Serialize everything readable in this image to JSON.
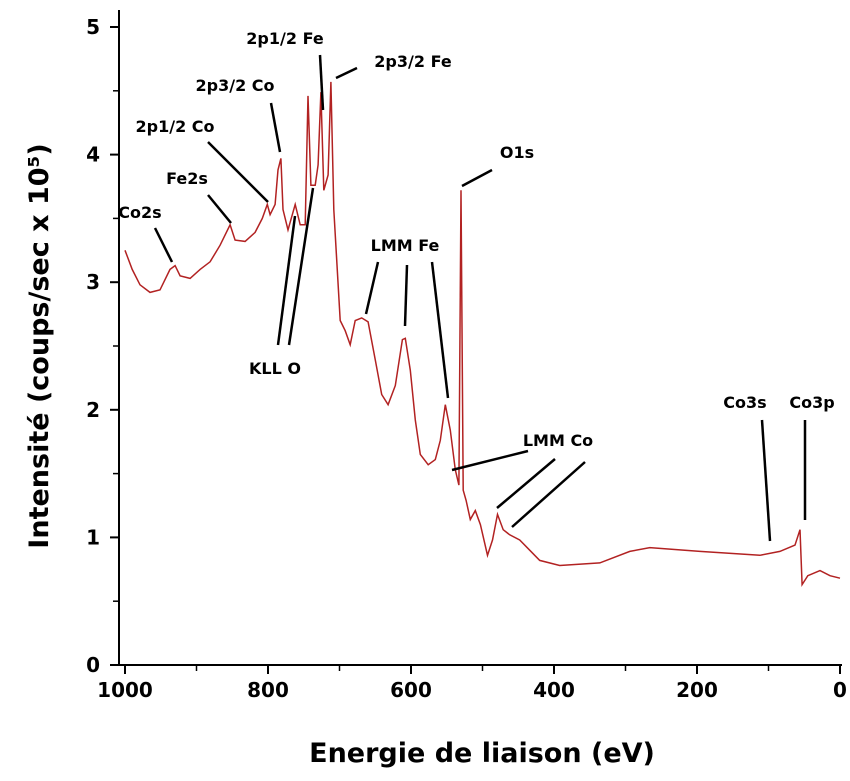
{
  "chart_data": {
    "type": "line",
    "x_label": "Energie de liaison (eV)",
    "y_label": "Intensité (coups/sec x 10⁵)",
    "xlim": [
      1000,
      0
    ],
    "xticks": [
      1000,
      800,
      600,
      400,
      200,
      0
    ],
    "ylim": [
      0,
      5
    ],
    "yticks": [
      0,
      1,
      2,
      3,
      4,
      5
    ],
    "series": [
      {
        "color": "#b22222",
        "x": [
          1000,
          990,
          979,
          965,
          951,
          937,
          930,
          923,
          909,
          895,
          881,
          867,
          853,
          846,
          832,
          818,
          808,
          801,
          797,
          790,
          786,
          782,
          779,
          772,
          762,
          755,
          748,
          744,
          740,
          734,
          730,
          726,
          722,
          716,
          712,
          708,
          699,
          692,
          685,
          678,
          669,
          660,
          650,
          641,
          632,
          622,
          612,
          608,
          601,
          594,
          587,
          576,
          566,
          559,
          552,
          545,
          538,
          533,
          530,
          527,
          523,
          517,
          510,
          503,
          493,
          486,
          479,
          471,
          462,
          448,
          434,
          420,
          392,
          336,
          294,
          266,
          196,
          112,
          84,
          63,
          56,
          53,
          45,
          28,
          14,
          0
        ],
        "values": [
          3.25,
          3.1,
          2.98,
          2.92,
          2.94,
          3.1,
          3.13,
          3.05,
          3.03,
          3.1,
          3.16,
          3.29,
          3.45,
          3.33,
          3.32,
          3.39,
          3.5,
          3.61,
          3.53,
          3.61,
          3.88,
          3.97,
          3.57,
          3.41,
          3.61,
          3.45,
          3.45,
          4.46,
          3.76,
          3.76,
          3.92,
          4.49,
          3.72,
          3.84,
          4.57,
          3.57,
          2.7,
          2.62,
          2.51,
          2.7,
          2.72,
          2.69,
          2.39,
          2.12,
          2.04,
          2.19,
          2.55,
          2.56,
          2.31,
          1.92,
          1.65,
          1.57,
          1.61,
          1.76,
          2.04,
          1.84,
          1.53,
          1.41,
          3.72,
          1.37,
          1.29,
          1.14,
          1.21,
          1.1,
          0.86,
          0.98,
          1.18,
          1.06,
          1.02,
          0.98,
          0.9,
          0.82,
          0.78,
          0.8,
          0.89,
          0.92,
          0.89,
          0.86,
          0.89,
          0.94,
          1.06,
          0.63,
          0.7,
          0.74,
          0.7,
          0.68
        ]
      }
    ],
    "annotations": [
      "2p1/2 Fe",
      "2p3/2 Fe",
      "2p3/2 Co",
      "2p1/2 Co",
      "Fe2s",
      "Co2s",
      "O1s",
      "LMM Fe",
      "KLL O",
      "LMM Co",
      "Co3s",
      "Co3p"
    ]
  }
}
